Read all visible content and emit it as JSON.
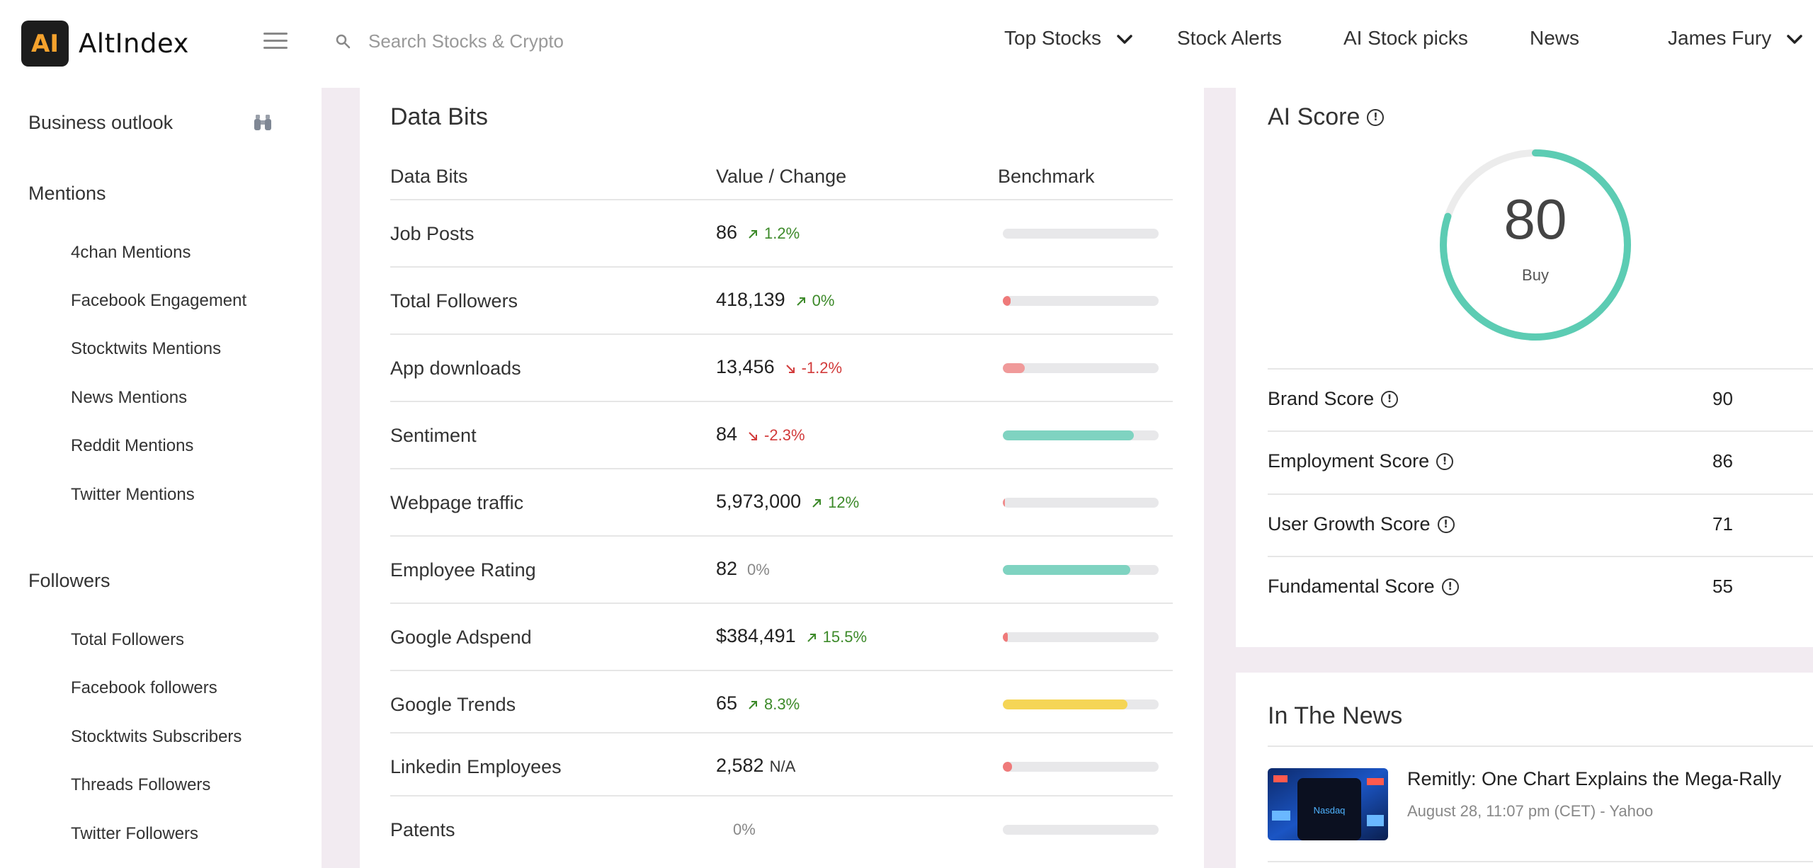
{
  "header": {
    "logo_mark": "AI",
    "logo_text": "AltIndex",
    "search_placeholder": "Search Stocks & Crypto",
    "nav": {
      "top_stocks": "Top Stocks",
      "stock_alerts": "Stock Alerts",
      "ai_stock_picks": "AI Stock picks",
      "news": "News",
      "user": "James Fury"
    }
  },
  "sidebar": {
    "business_outlook": "Business outlook",
    "mentions": {
      "title": "Mentions",
      "items": [
        "4chan Mentions",
        "Facebook Engagement",
        "Stocktwits Mentions",
        "News Mentions",
        "Reddit Mentions",
        "Twitter Mentions"
      ]
    },
    "followers": {
      "title": "Followers",
      "items": [
        "Total Followers",
        "Facebook followers",
        "Stocktwits Subscribers",
        "Threads Followers",
        "Twitter Followers"
      ]
    }
  },
  "databits": {
    "title": "Data Bits",
    "columns": [
      "Data Bits",
      "Value / Change",
      "Benchmark"
    ],
    "rows": [
      {
        "name": "Job Posts",
        "value": "86",
        "change": "1.2%",
        "dir": "up",
        "bench": 0.0,
        "color": "#f08c8c"
      },
      {
        "name": "Total Followers",
        "value": "418,139",
        "change": "0%",
        "dir": "up",
        "bench": 0.05,
        "color": "#ef7a7a"
      },
      {
        "name": "App downloads",
        "value": "13,456",
        "change": "-1.2%",
        "dir": "down",
        "bench": 0.14,
        "color": "#f09a9a"
      },
      {
        "name": "Sentiment",
        "value": "84",
        "change": "-2.3%",
        "dir": "down",
        "bench": 0.84,
        "color": "#7fd3c1"
      },
      {
        "name": "Webpage traffic",
        "value": "5,973,000",
        "change": "12%",
        "dir": "up",
        "bench": 0.015,
        "color": "#f08c8c"
      },
      {
        "name": "Employee Rating",
        "value": "82",
        "change": "0%",
        "dir": "flat",
        "bench": 0.82,
        "color": "#7fd3c1"
      },
      {
        "name": "Google Adspend",
        "value": "$384,491",
        "change": "15.5%",
        "dir": "up",
        "bench": 0.03,
        "color": "#ef7a7a"
      },
      {
        "name": "Google Trends",
        "value": "65",
        "change": "8.3%",
        "dir": "up",
        "bench": 0.8,
        "color": "#f5d556"
      },
      {
        "name": "Linkedin Employees",
        "value": "2,582",
        "change": "N/A",
        "dir": "na",
        "bench": 0.06,
        "color": "#ef7a7a"
      },
      {
        "name": "Patents",
        "value": "",
        "change": "0%",
        "dir": "flat",
        "bench": 0.0,
        "color": "#ef7a7a"
      }
    ]
  },
  "aiscore": {
    "title": "AI Score",
    "score": "80",
    "score_value": 80,
    "verdict": "Buy",
    "gauge_color": "#5cccb3",
    "rows": [
      {
        "label": "Brand Score",
        "value": "90"
      },
      {
        "label": "Employment Score",
        "value": "86"
      },
      {
        "label": "User Growth Score",
        "value": "71"
      },
      {
        "label": "Fundamental Score",
        "value": "55"
      }
    ]
  },
  "news": {
    "title": "In The News",
    "items": [
      {
        "headline": "Remitly: One Chart Explains the Mega-Rally",
        "meta": "August 28, 11:07 pm (CET) - Yahoo",
        "thumb_text": "Nasdaq"
      }
    ]
  }
}
